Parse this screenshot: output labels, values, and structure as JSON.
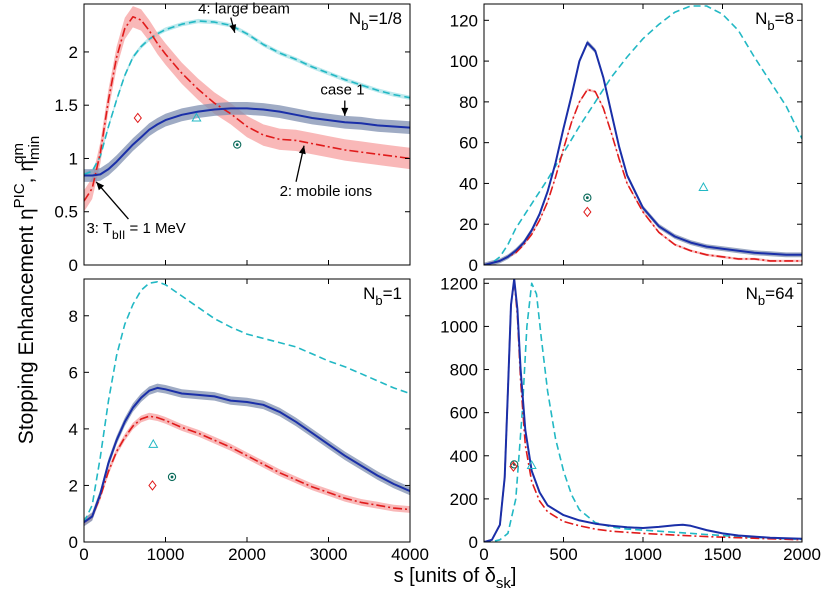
{
  "figure": {
    "ylabel_main": "Stopping Enhancement η",
    "ylabel_sup": "PIC",
    "ylabel_sep": ", η",
    "ylabel_sub": "min",
    "ylabel_sup2": "qm",
    "xlabel_main": "s [units of δ",
    "xlabel_sub": "sk",
    "xlabel_end": "]"
  },
  "colors": {
    "case1": "#1a2fa8",
    "case1_band": "#7f8fb0",
    "mobile_ions": "#e01b1b",
    "mobile_band": "#f7a0a0",
    "large_beam": "#22b8c4",
    "large_band": "#a6e2e7",
    "marker_case1": "#0a6a5a",
    "marker_ions": "#e01b1b",
    "marker_beam": "#22b8c4"
  },
  "chart_data": [
    {
      "type": "line",
      "panel": "top-left",
      "label_main": "N",
      "label_sub": "b",
      "label_rest": "=1/8",
      "xlim": [
        0,
        4000
      ],
      "ylim": [
        0,
        2.45
      ],
      "xticks": [
        0,
        1000,
        2000,
        3000,
        4000
      ],
      "xtick_labels": [
        "",
        "",
        "",
        "",
        ""
      ],
      "yticks": [
        0,
        0.5,
        1,
        1.5,
        2
      ],
      "ytick_labels": [
        "0",
        "0.5",
        "1",
        "1.5",
        "2"
      ],
      "series": [
        {
          "id": "large_beam",
          "style": "dashed",
          "x": [
            0,
            100,
            200,
            300,
            400,
            500,
            600,
            700,
            800,
            900,
            1000,
            1200,
            1400,
            1600,
            1800,
            2000,
            2200,
            2400,
            2600,
            2800,
            3000,
            3200,
            3400,
            3600,
            3800,
            4000
          ],
          "y": [
            0.85,
            0.88,
            1.02,
            1.3,
            1.55,
            1.78,
            1.95,
            2.05,
            2.12,
            2.17,
            2.21,
            2.26,
            2.29,
            2.28,
            2.25,
            2.17,
            2.07,
            1.99,
            1.93,
            1.86,
            1.8,
            1.74,
            1.69,
            1.64,
            1.6,
            1.57
          ],
          "band": 0.02
        },
        {
          "id": "mobile_ions",
          "style": "dashdot",
          "x": [
            0,
            100,
            200,
            300,
            400,
            500,
            600,
            700,
            800,
            900,
            1000,
            1200,
            1400,
            1600,
            1800,
            2000,
            2200,
            2400,
            2600,
            2800,
            3000,
            3200,
            3400,
            3600,
            3800,
            4000
          ],
          "y": [
            0.6,
            0.72,
            1.05,
            1.55,
            1.95,
            2.22,
            2.33,
            2.3,
            2.2,
            2.08,
            1.98,
            1.8,
            1.65,
            1.52,
            1.42,
            1.3,
            1.22,
            1.18,
            1.17,
            1.14,
            1.11,
            1.08,
            1.06,
            1.04,
            1.02,
            1.0
          ],
          "band": 0.1
        },
        {
          "id": "case1",
          "style": "solid",
          "x": [
            0,
            100,
            200,
            300,
            400,
            500,
            600,
            700,
            800,
            900,
            1000,
            1200,
            1400,
            1600,
            1800,
            2000,
            2200,
            2400,
            2600,
            2800,
            3000,
            3200,
            3400,
            3600,
            3800,
            4000
          ],
          "y": [
            0.84,
            0.84,
            0.85,
            0.9,
            0.97,
            1.05,
            1.13,
            1.2,
            1.27,
            1.32,
            1.36,
            1.41,
            1.44,
            1.46,
            1.47,
            1.47,
            1.46,
            1.44,
            1.41,
            1.38,
            1.36,
            1.34,
            1.33,
            1.31,
            1.3,
            1.29
          ],
          "band": 0.06
        }
      ],
      "markers": [
        {
          "id": "mobile_ions",
          "shape": "diamond",
          "x": 660,
          "y": 1.38
        },
        {
          "id": "large_beam",
          "shape": "triangle",
          "x": 1380,
          "y": 1.38
        },
        {
          "id": "case1",
          "shape": "circle",
          "x": 1880,
          "y": 1.13
        }
      ],
      "annotations": [
        {
          "text": "4: large beam",
          "at": [
            1400,
            2.36
          ],
          "arrow_to": [
            1850,
            2.18
          ]
        },
        {
          "text": "case 1",
          "at": [
            2900,
            1.6
          ],
          "arrow_to": [
            3200,
            1.4
          ]
        },
        {
          "text": "2: mobile ions",
          "at": [
            2400,
            0.65
          ],
          "arrow_to": [
            2700,
            1.12
          ]
        },
        {
          "text_main": "3: T",
          "text_sub": "bII",
          "text_rest": " = 1 MeV",
          "at": [
            30,
            0.3
          ],
          "arrow_to": [
            150,
            0.78
          ]
        }
      ]
    },
    {
      "type": "line",
      "panel": "top-right",
      "label_main": "N",
      "label_sub": "b",
      "label_rest": "=8",
      "xlim": [
        0,
        2000
      ],
      "ylim": [
        0,
        128
      ],
      "xticks": [
        0,
        500,
        1000,
        1500,
        2000
      ],
      "xtick_labels": [
        "",
        "",
        "",
        "",
        ""
      ],
      "yticks": [
        0,
        20,
        40,
        60,
        80,
        100,
        120
      ],
      "ytick_labels": [
        "0",
        "20",
        "40",
        "60",
        "80",
        "100",
        "120"
      ],
      "series": [
        {
          "id": "large_beam",
          "style": "dashed",
          "x": [
            0,
            50,
            100,
            150,
            200,
            300,
            400,
            500,
            600,
            700,
            800,
            900,
            1000,
            1100,
            1200,
            1300,
            1400,
            1500,
            1600,
            1700,
            1800,
            1900,
            2000
          ],
          "y": [
            0,
            1,
            4,
            10,
            18,
            30,
            42,
            55,
            68,
            80,
            92,
            102,
            111,
            118,
            124,
            127,
            127,
            123,
            115,
            102,
            90,
            78,
            62
          ],
          "band": 0
        },
        {
          "id": "mobile_ions",
          "style": "dashdot",
          "x": [
            0,
            50,
            100,
            150,
            200,
            250,
            300,
            350,
            400,
            450,
            500,
            550,
            600,
            650,
            700,
            750,
            800,
            850,
            900,
            1000,
            1100,
            1200,
            1300,
            1400,
            1500,
            1600,
            1700,
            1800,
            1900,
            2000
          ],
          "y": [
            0,
            1,
            2,
            4,
            6,
            10,
            15,
            22,
            31,
            43,
            57,
            70,
            80,
            86,
            85,
            77,
            65,
            52,
            40,
            26,
            16,
            10,
            7,
            5,
            4,
            3,
            3,
            2,
            2,
            2
          ],
          "band": 0.6
        },
        {
          "id": "case1",
          "style": "solid",
          "x": [
            0,
            50,
            100,
            150,
            200,
            250,
            300,
            350,
            400,
            450,
            500,
            550,
            600,
            650,
            700,
            750,
            800,
            850,
            900,
            1000,
            1100,
            1200,
            1300,
            1400,
            1500,
            1600,
            1700,
            1800,
            1900,
            2000
          ],
          "y": [
            0,
            1,
            2,
            4,
            7,
            11,
            17,
            25,
            36,
            50,
            67,
            83,
            100,
            109,
            105,
            92,
            75,
            58,
            44,
            28,
            19,
            14,
            11,
            9,
            8,
            7,
            6,
            5.5,
            5,
            5
          ],
          "band": 1.2
        }
      ],
      "markers": [
        {
          "id": "case1",
          "shape": "circle",
          "x": 650,
          "y": 33
        },
        {
          "id": "mobile_ions",
          "shape": "diamond",
          "x": 650,
          "y": 26
        },
        {
          "id": "large_beam",
          "shape": "triangle",
          "x": 1380,
          "y": 38
        }
      ],
      "annotations": []
    },
    {
      "type": "line",
      "panel": "bottom-left",
      "label_main": "N",
      "label_sub": "b",
      "label_rest": "=1",
      "xlim": [
        0,
        4000
      ],
      "ylim": [
        0,
        9.3
      ],
      "xticks": [
        0,
        1000,
        2000,
        3000,
        4000
      ],
      "xtick_labels": [
        "0",
        "1000",
        "2000",
        "3000",
        "4000"
      ],
      "yticks": [
        0,
        2,
        4,
        6,
        8
      ],
      "ytick_labels": [
        "0",
        "2",
        "4",
        "6",
        "8"
      ],
      "series": [
        {
          "id": "large_beam",
          "style": "dashed",
          "x": [
            0,
            100,
            200,
            300,
            400,
            500,
            600,
            700,
            800,
            900,
            1000,
            1200,
            1400,
            1600,
            1800,
            2000,
            2200,
            2400,
            2600,
            2800,
            3000,
            3200,
            3400,
            3600,
            3800,
            4000
          ],
          "y": [
            0.7,
            1.3,
            3.0,
            5.0,
            6.6,
            7.7,
            8.4,
            8.9,
            9.15,
            9.2,
            9.1,
            8.7,
            8.3,
            7.9,
            7.6,
            7.35,
            7.2,
            7.05,
            6.9,
            6.65,
            6.4,
            6.2,
            5.95,
            5.7,
            5.45,
            5.25
          ],
          "band": 0
        },
        {
          "id": "mobile_ions",
          "style": "dashdot",
          "x": [
            0,
            100,
            200,
            300,
            400,
            500,
            600,
            700,
            800,
            900,
            1000,
            1200,
            1400,
            1600,
            1800,
            2000,
            2200,
            2400,
            2600,
            2800,
            3000,
            3200,
            3400,
            3600,
            3800,
            4000
          ],
          "y": [
            0.7,
            0.9,
            1.6,
            2.5,
            3.2,
            3.7,
            4.1,
            4.35,
            4.45,
            4.4,
            4.3,
            4.05,
            3.85,
            3.6,
            3.35,
            3.05,
            2.75,
            2.45,
            2.2,
            1.95,
            1.75,
            1.55,
            1.4,
            1.3,
            1.2,
            1.15
          ],
          "band": 0.12
        },
        {
          "id": "case1",
          "style": "solid",
          "x": [
            0,
            100,
            200,
            300,
            400,
            500,
            600,
            700,
            800,
            900,
            1000,
            1200,
            1400,
            1600,
            1800,
            2000,
            2200,
            2400,
            2600,
            2800,
            3000,
            3200,
            3400,
            3600,
            3800,
            4000
          ],
          "y": [
            0.7,
            0.9,
            1.7,
            2.8,
            3.6,
            4.25,
            4.75,
            5.1,
            5.35,
            5.45,
            5.4,
            5.25,
            5.2,
            5.15,
            5.0,
            4.95,
            4.85,
            4.6,
            4.25,
            3.85,
            3.45,
            3.05,
            2.7,
            2.35,
            2.05,
            1.8
          ],
          "band": 0.15
        }
      ],
      "markers": [
        {
          "id": "large_beam",
          "shape": "triangle",
          "x": 850,
          "y": 3.45
        },
        {
          "id": "case1",
          "shape": "circle",
          "x": 1080,
          "y": 2.3
        },
        {
          "id": "mobile_ions",
          "shape": "diamond",
          "x": 840,
          "y": 2.0
        }
      ],
      "annotations": []
    },
    {
      "type": "line",
      "panel": "bottom-right",
      "label_main": "N",
      "label_sub": "b",
      "label_rest": "=64",
      "xlim": [
        0,
        2000
      ],
      "ylim": [
        0,
        1220
      ],
      "xticks": [
        0,
        500,
        1000,
        1500,
        2000
      ],
      "xtick_labels": [
        "0",
        "500",
        "1000",
        "1500",
        "2000"
      ],
      "yticks": [
        0,
        200,
        400,
        600,
        800,
        1000,
        1200
      ],
      "ytick_labels": [
        "0",
        "200",
        "400",
        "600",
        "800",
        "1000",
        "1200"
      ],
      "series": [
        {
          "id": "large_beam",
          "style": "dashed",
          "x": [
            0,
            50,
            100,
            150,
            200,
            240,
            270,
            300,
            330,
            360,
            400,
            450,
            500,
            550,
            600,
            700,
            800,
            900,
            1000,
            1200,
            1400,
            1600,
            1800,
            2000
          ],
          "y": [
            0,
            2,
            10,
            40,
            200,
            600,
            1000,
            1200,
            1150,
            950,
            700,
            480,
            330,
            220,
            150,
            90,
            70,
            60,
            55,
            45,
            35,
            25,
            18,
            12
          ],
          "band": 0
        },
        {
          "id": "mobile_ions",
          "style": "dashdot",
          "x": [
            0,
            50,
            100,
            130,
            150,
            170,
            190,
            210,
            230,
            260,
            300,
            350,
            400,
            500,
            600,
            700,
            800,
            1000,
            1200,
            1400,
            1600,
            1800,
            2000
          ],
          "y": [
            0,
            10,
            80,
            300,
            700,
            1100,
            1215,
            1050,
            750,
            450,
            280,
            190,
            140,
            95,
            75,
            60,
            50,
            40,
            32,
            25,
            20,
            15,
            10
          ],
          "band": 0
        },
        {
          "id": "case1",
          "style": "solid",
          "x": [
            0,
            50,
            100,
            130,
            150,
            170,
            190,
            210,
            230,
            260,
            300,
            350,
            400,
            500,
            600,
            700,
            800,
            900,
            1000,
            1100,
            1200,
            1250,
            1300,
            1400,
            1500,
            1600,
            1700,
            1800,
            2000
          ],
          "y": [
            0,
            10,
            80,
            300,
            700,
            1100,
            1220,
            1080,
            800,
            520,
            330,
            230,
            170,
            125,
            100,
            85,
            75,
            68,
            65,
            70,
            78,
            80,
            75,
            55,
            40,
            30,
            25,
            20,
            15
          ],
          "band": 0
        }
      ],
      "markers": [
        {
          "id": "case1",
          "shape": "circle",
          "x": 190,
          "y": 360
        },
        {
          "id": "mobile_ions",
          "shape": "diamond",
          "x": 185,
          "y": 350
        },
        {
          "id": "large_beam",
          "shape": "triangle",
          "x": 300,
          "y": 355
        }
      ],
      "annotations": []
    }
  ]
}
